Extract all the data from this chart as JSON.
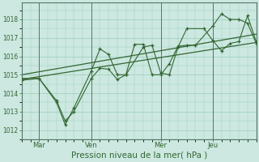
{
  "background_color": "#cce8e0",
  "grid_color": "#99ccbb",
  "line_color": "#336633",
  "vline_color": "#557766",
  "yticks": [
    1012,
    1013,
    1014,
    1015,
    1016,
    1017,
    1018
  ],
  "ylim": [
    1011.5,
    1018.9
  ],
  "xtick_labels": [
    "Mar",
    "Ven",
    "Mer",
    "Jeu"
  ],
  "xtick_positions": [
    1,
    4,
    8,
    11
  ],
  "xvlines": [
    1,
    4,
    8,
    11
  ],
  "xlim": [
    0,
    13.5
  ],
  "xlabel": "Pression niveau de la mer( hPa )",
  "series1_x": [
    0.0,
    1.0,
    2.0,
    2.5,
    3.0,
    4.0,
    4.5,
    5.0,
    5.5,
    6.0,
    6.5,
    7.0,
    7.5,
    8.0,
    8.5,
    9.0,
    9.5,
    10.0,
    11.0,
    11.5,
    12.0,
    12.5,
    13.0,
    13.5
  ],
  "series1_y": [
    1014.7,
    1014.8,
    1013.6,
    1012.5,
    1013.0,
    1014.8,
    1015.35,
    1015.3,
    1014.75,
    1015.0,
    1016.65,
    1016.65,
    1015.0,
    1015.0,
    1015.6,
    1016.55,
    1016.6,
    1016.6,
    1017.65,
    1018.3,
    1018.0,
    1018.0,
    1017.8,
    1016.7
  ],
  "series2_x": [
    0.0,
    1.0,
    2.0,
    2.5,
    3.0,
    4.0,
    4.5,
    5.0,
    5.5,
    6.0,
    7.0,
    7.5,
    8.0,
    8.5,
    9.0,
    9.5,
    10.5,
    11.0,
    11.5,
    12.0,
    12.5,
    13.0,
    13.5
  ],
  "series2_y": [
    1014.8,
    1014.8,
    1013.5,
    1012.3,
    1013.2,
    1015.2,
    1016.4,
    1016.1,
    1015.0,
    1015.0,
    1016.5,
    1016.6,
    1015.1,
    1015.0,
    1016.5,
    1017.5,
    1017.5,
    1016.85,
    1016.3,
    1016.7,
    1016.8,
    1018.2,
    1016.8
  ],
  "trend_x": [
    0.0,
    13.5
  ],
  "trend_y": [
    1014.75,
    1016.75
  ],
  "trend2_x": [
    0.0,
    13.5
  ],
  "trend2_y": [
    1015.0,
    1017.2
  ]
}
